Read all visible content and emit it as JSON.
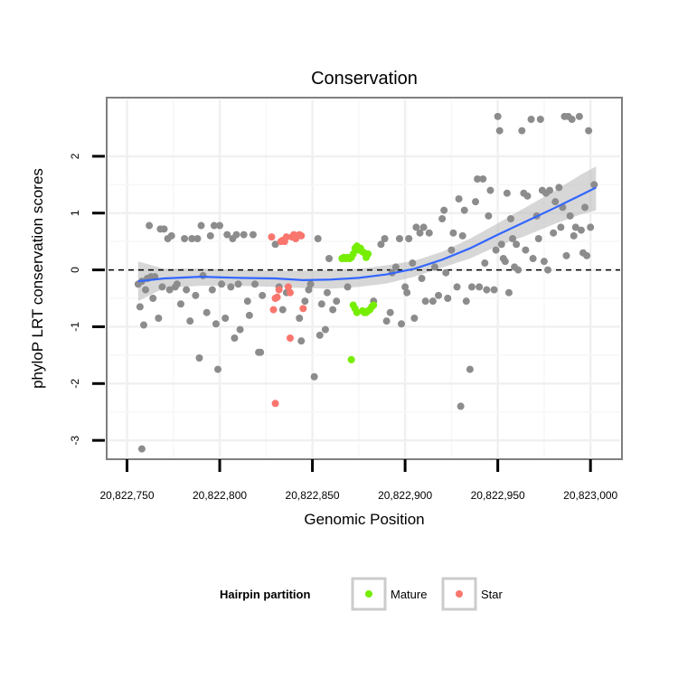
{
  "chart_data": {
    "type": "scatter",
    "title": "Conservation",
    "xlabel": "Genomic Position",
    "ylabel": "phyloP LRT conservation scores",
    "xlim": [
      20822740,
      20823016
    ],
    "ylim": [
      -3.3,
      3.0
    ],
    "x_ticks": [
      20822750,
      20822800,
      20822850,
      20822900,
      20822950,
      20823000
    ],
    "x_tick_labels": [
      "20,822,750",
      "20,822,800",
      "20,822,850",
      "20,822,900",
      "20,822,950",
      "20,823,000"
    ],
    "y_ticks": [
      -3,
      -2,
      -1,
      0,
      1,
      2
    ],
    "y_tick_labels": [
      "-3",
      "-2",
      "-1",
      "0",
      "1",
      "2"
    ],
    "reference_line": {
      "y": 0,
      "style": "dashed"
    },
    "legend": {
      "title": "Hairpin partition",
      "position": "bottom",
      "entries": [
        {
          "label": "Mature",
          "color": "#76ee00"
        },
        {
          "label": "Star",
          "color": "#f8766d"
        }
      ]
    },
    "colors": {
      "other": "#8c8c8c",
      "Mature": "#76ee00",
      "Star": "#f8766d",
      "smooth": "#3366ff",
      "band": "#bdbdbd"
    },
    "series": [
      {
        "name": "Other",
        "points": [
          [
            20822756,
            -0.25
          ],
          [
            20822757,
            -0.65
          ],
          [
            20822758,
            -0.2
          ],
          [
            20822759,
            -0.97
          ],
          [
            20822760,
            -0.35
          ],
          [
            20822761,
            -0.15
          ],
          [
            20822762,
            0.78
          ],
          [
            20822763,
            -0.12
          ],
          [
            20822764,
            -0.5
          ],
          [
            20822765,
            -0.12
          ],
          [
            20822767,
            -0.85
          ],
          [
            20822768,
            0.72
          ],
          [
            20822769,
            -0.3
          ],
          [
            20822770,
            0.72
          ],
          [
            20822772,
            0.55
          ],
          [
            20822773,
            -0.35
          ],
          [
            20822774,
            0.6
          ],
          [
            20822776,
            -0.3
          ],
          [
            20822777,
            -0.25
          ],
          [
            20822779,
            -0.6
          ],
          [
            20822781,
            0.55
          ],
          [
            20822782,
            -0.35
          ],
          [
            20822784,
            -0.9
          ],
          [
            20822785,
            0.55
          ],
          [
            20822787,
            -0.45
          ],
          [
            20822788,
            0.55
          ],
          [
            20822789,
            -1.55
          ],
          [
            20822790,
            0.78
          ],
          [
            20822791,
            -0.1
          ],
          [
            20822793,
            -0.75
          ],
          [
            20822795,
            0.6
          ],
          [
            20822796,
            -0.35
          ],
          [
            20822797,
            0.78
          ],
          [
            20822798,
            -0.95
          ],
          [
            20822799,
            -1.75
          ],
          [
            20822800,
            0.78
          ],
          [
            20822801,
            -0.25
          ],
          [
            20822803,
            -0.85
          ],
          [
            20822804,
            0.62
          ],
          [
            20822806,
            -0.3
          ],
          [
            20822807,
            0.55
          ],
          [
            20822808,
            -1.2
          ],
          [
            20822809,
            0.62
          ],
          [
            20822810,
            -0.25
          ],
          [
            20822811,
            -1.05
          ],
          [
            20822813,
            0.62
          ],
          [
            20822815,
            -0.55
          ],
          [
            20822816,
            -0.8
          ],
          [
            20822818,
            0.62
          ],
          [
            20822819,
            -0.25
          ],
          [
            20822821,
            -1.45
          ],
          [
            20822822,
            -1.45
          ],
          [
            20822823,
            -0.45
          ],
          [
            20822830,
            0.45
          ],
          [
            20822832,
            -0.3
          ],
          [
            20822834,
            -0.7
          ],
          [
            20822836,
            -0.4
          ],
          [
            20822843,
            -0.85
          ],
          [
            20822844,
            -1.25
          ],
          [
            20822846,
            -0.55
          ],
          [
            20822848,
            -0.35
          ],
          [
            20822849,
            -0.25
          ],
          [
            20822851,
            -1.88
          ],
          [
            20822853,
            0.55
          ],
          [
            20822854,
            -1.15
          ],
          [
            20822855,
            -0.6
          ],
          [
            20822857,
            -1.05
          ],
          [
            20822858,
            -0.4
          ],
          [
            20822859,
            0.2
          ],
          [
            20822861,
            -0.7
          ],
          [
            20822863,
            -0.55
          ],
          [
            20822866,
            0.2
          ],
          [
            20822869,
            -0.3
          ],
          [
            20822883,
            -0.55
          ],
          [
            20822887,
            0.45
          ],
          [
            20822889,
            0.55
          ],
          [
            20822890,
            -0.9
          ],
          [
            20822892,
            -0.75
          ],
          [
            20822893,
            -0.05
          ],
          [
            20822895,
            0.05
          ],
          [
            20822897,
            0.55
          ],
          [
            20822898,
            -0.95
          ],
          [
            20822900,
            -0.3
          ],
          [
            20822901,
            -0.4
          ],
          [
            20822902,
            0.55
          ],
          [
            20822904,
            0.12
          ],
          [
            20822905,
            -0.85
          ],
          [
            20822906,
            0.75
          ],
          [
            20822908,
            0.65
          ],
          [
            20822909,
            -0.15
          ],
          [
            20822910,
            0.75
          ],
          [
            20822911,
            -0.55
          ],
          [
            20822913,
            0.65
          ],
          [
            20822915,
            -0.55
          ],
          [
            20822916,
            0.05
          ],
          [
            20822918,
            -0.45
          ],
          [
            20822920,
            0.9
          ],
          [
            20822921,
            1.05
          ],
          [
            20822922,
            -0.05
          ],
          [
            20822923,
            -0.5
          ],
          [
            20822925,
            0.35
          ],
          [
            20822926,
            0.65
          ],
          [
            20822928,
            -0.3
          ],
          [
            20822929,
            1.25
          ],
          [
            20822930,
            -2.4
          ],
          [
            20822931,
            0.6
          ],
          [
            20822932,
            1.05
          ],
          [
            20822933,
            -0.55
          ],
          [
            20822935,
            -1.75
          ],
          [
            20822936,
            -0.3
          ],
          [
            20822938,
            1.2
          ],
          [
            20822939,
            1.6
          ],
          [
            20822940,
            -0.3
          ],
          [
            20822942,
            1.6
          ],
          [
            20822943,
            0.12
          ],
          [
            20822944,
            -0.35
          ],
          [
            20822945,
            0.95
          ],
          [
            20822946,
            1.4
          ],
          [
            20822948,
            -0.35
          ],
          [
            20822949,
            0.35
          ],
          [
            20822950,
            2.7
          ],
          [
            20822951,
            2.45
          ],
          [
            20822952,
            0.45
          ],
          [
            20822953,
            0.2
          ],
          [
            20822954,
            0.15
          ],
          [
            20822955,
            1.35
          ],
          [
            20822956,
            -0.4
          ],
          [
            20822957,
            0.9
          ],
          [
            20822958,
            0.55
          ],
          [
            20822959,
            0.05
          ],
          [
            20822960,
            0.45
          ],
          [
            20822961,
            0.0
          ],
          [
            20822963,
            2.45
          ],
          [
            20822964,
            1.35
          ],
          [
            20822965,
            0.35
          ],
          [
            20822966,
            1.3
          ],
          [
            20822968,
            2.65
          ],
          [
            20822969,
            0.2
          ],
          [
            20822971,
            0.95
          ],
          [
            20822972,
            0.55
          ],
          [
            20822973,
            2.65
          ],
          [
            20822974,
            1.4
          ],
          [
            20822975,
            0.15
          ],
          [
            20822976,
            1.35
          ],
          [
            20822977,
            0.0
          ],
          [
            20822978,
            1.4
          ],
          [
            20822980,
            0.65
          ],
          [
            20822981,
            1.2
          ],
          [
            20822983,
            1.45
          ],
          [
            20822984,
            0.75
          ],
          [
            20822985,
            1.1
          ],
          [
            20822986,
            2.7
          ],
          [
            20822987,
            0.25
          ],
          [
            20822988,
            2.7
          ],
          [
            20822989,
            0.95
          ],
          [
            20822990,
            2.65
          ],
          [
            20822991,
            0.6
          ],
          [
            20822992,
            0.75
          ],
          [
            20822994,
            2.7
          ],
          [
            20822995,
            0.7
          ],
          [
            20822996,
            0.3
          ],
          [
            20822997,
            1.1
          ],
          [
            20822998,
            0.25
          ],
          [
            20822999,
            2.45
          ],
          [
            20823000,
            0.75
          ],
          [
            20823002,
            1.5
          ],
          [
            20822758,
            -3.15
          ]
        ]
      },
      {
        "name": "Mature",
        "points": [
          [
            20822866,
            0.2
          ],
          [
            20822867,
            0.22
          ],
          [
            20822868,
            0.2
          ],
          [
            20822869,
            0.22
          ],
          [
            20822870,
            0.2
          ],
          [
            20822871,
            0.22
          ],
          [
            20822872,
            0.28
          ],
          [
            20822873,
            0.38
          ],
          [
            20822874,
            0.42
          ],
          [
            20822875,
            0.35
          ],
          [
            20822876,
            0.38
          ],
          [
            20822877,
            0.32
          ],
          [
            20822878,
            0.3
          ],
          [
            20822879,
            0.22
          ],
          [
            20822880,
            0.28
          ],
          [
            20822872,
            -0.62
          ],
          [
            20822873,
            -0.68
          ],
          [
            20822874,
            -0.75
          ],
          [
            20822877,
            -0.72
          ],
          [
            20822878,
            -0.75
          ],
          [
            20822879,
            -0.75
          ],
          [
            20822880,
            -0.72
          ],
          [
            20822881,
            -0.7
          ],
          [
            20822882,
            -0.65
          ],
          [
            20822883,
            -0.62
          ],
          [
            20822871,
            -1.58
          ]
        ]
      },
      {
        "name": "Star",
        "points": [
          [
            20822828,
            0.58
          ],
          [
            20822829,
            -0.7
          ],
          [
            20822830,
            -0.5
          ],
          [
            20822831,
            -0.48
          ],
          [
            20822832,
            -0.35
          ],
          [
            20822833,
            0.5
          ],
          [
            20822834,
            0.52
          ],
          [
            20822835,
            0.5
          ],
          [
            20822836,
            0.58
          ],
          [
            20822837,
            -0.3
          ],
          [
            20822838,
            -0.4
          ],
          [
            20822839,
            0.58
          ],
          [
            20822840,
            0.62
          ],
          [
            20822841,
            0.55
          ],
          [
            20822842,
            0.6
          ],
          [
            20822843,
            0.62
          ],
          [
            20822844,
            0.6
          ],
          [
            20822845,
            -0.68
          ],
          [
            20822830,
            -2.35
          ],
          [
            20822838,
            -1.2
          ]
        ]
      }
    ],
    "smooth_line": [
      [
        20822756,
        -0.2
      ],
      [
        20822770,
        -0.15
      ],
      [
        20822790,
        -0.12
      ],
      [
        20822810,
        -0.14
      ],
      [
        20822830,
        -0.15
      ],
      [
        20822845,
        -0.18
      ],
      [
        20822860,
        -0.17
      ],
      [
        20822875,
        -0.14
      ],
      [
        20822890,
        -0.08
      ],
      [
        20822905,
        0.02
      ],
      [
        20822920,
        0.18
      ],
      [
        20822935,
        0.38
      ],
      [
        20822950,
        0.62
      ],
      [
        20822965,
        0.85
      ],
      [
        20822980,
        1.08
      ],
      [
        20822995,
        1.32
      ],
      [
        20823003,
        1.45
      ]
    ],
    "confidence_band": {
      "upper": [
        [
          20822756,
          0.15
        ],
        [
          20822770,
          0.02
        ],
        [
          20822790,
          0.02
        ],
        [
          20822810,
          0.0
        ],
        [
          20822830,
          -0.02
        ],
        [
          20822845,
          -0.02
        ],
        [
          20822860,
          0.0
        ],
        [
          20822875,
          0.02
        ],
        [
          20822890,
          0.08
        ],
        [
          20822905,
          0.16
        ],
        [
          20822920,
          0.32
        ],
        [
          20822935,
          0.55
        ],
        [
          20822950,
          0.82
        ],
        [
          20822965,
          1.1
        ],
        [
          20822980,
          1.38
        ],
        [
          20822995,
          1.68
        ],
        [
          20823003,
          1.82
        ]
      ],
      "lower": [
        [
          20822756,
          -0.55
        ],
        [
          20822770,
          -0.32
        ],
        [
          20822790,
          -0.28
        ],
        [
          20822810,
          -0.28
        ],
        [
          20822830,
          -0.3
        ],
        [
          20822845,
          -0.32
        ],
        [
          20822860,
          -0.33
        ],
        [
          20822875,
          -0.3
        ],
        [
          20822890,
          -0.24
        ],
        [
          20822905,
          -0.12
        ],
        [
          20822920,
          0.04
        ],
        [
          20822935,
          0.2
        ],
        [
          20822950,
          0.42
        ],
        [
          20822965,
          0.6
        ],
        [
          20822980,
          0.8
        ],
        [
          20822995,
          0.98
        ],
        [
          20823003,
          1.05
        ]
      ]
    }
  }
}
